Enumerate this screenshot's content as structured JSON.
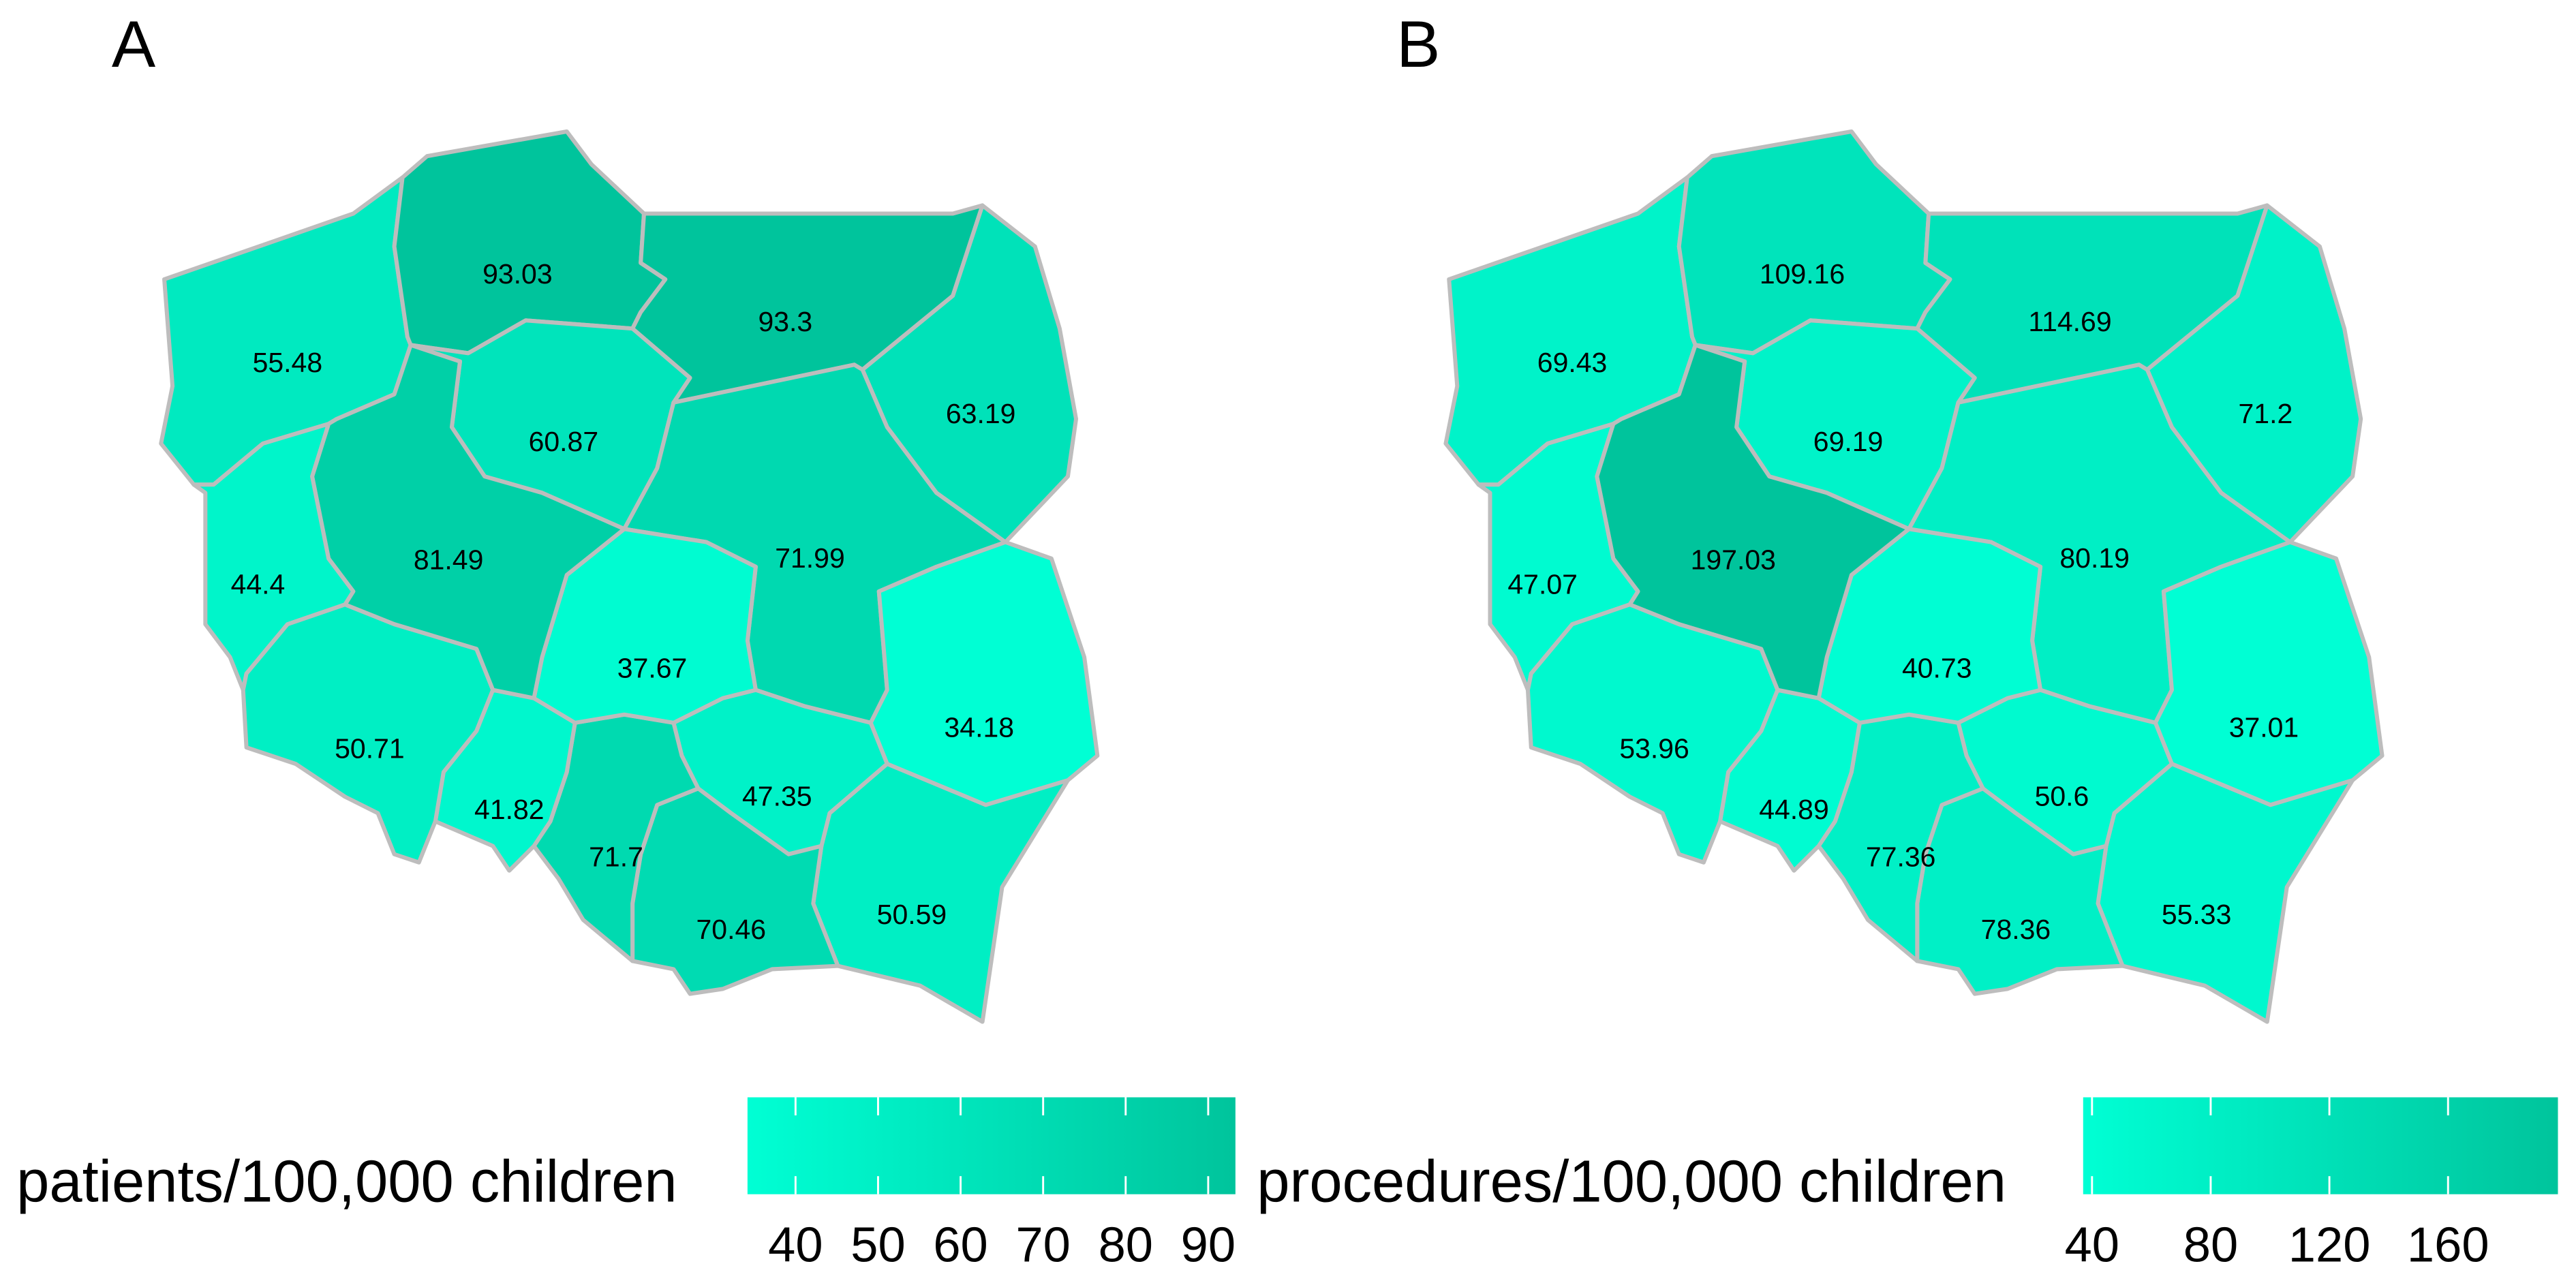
{
  "maps": [
    {
      "label": "A",
      "legend_title": "patients/100,000 children",
      "values": [
        55.48,
        93.03,
        93.3,
        63.19,
        60.87,
        71.99,
        34.18,
        50.59,
        47.35,
        70.46,
        71.7,
        41.82,
        37.67,
        81.49,
        44.4,
        50.71
      ],
      "scale": {
        "lim": [
          34.18,
          93.3
        ],
        "ticks": [
          40,
          50,
          60,
          70,
          80,
          90
        ],
        "low_color": "#00ffd4",
        "high_color": "#00c49c"
      }
    },
    {
      "label": "B",
      "legend_title": "procedures/100,000 children",
      "values": [
        69.43,
        109.16,
        114.69,
        71.2,
        69.19,
        80.19,
        37.01,
        55.33,
        50.6,
        78.36,
        77.36,
        44.89,
        40.73,
        197.03,
        47.07,
        53.96
      ],
      "scale": {
        "lim": [
          37.01,
          197.03
        ],
        "ticks": [
          40,
          80,
          120,
          160
        ],
        "low_color": "#00ffd4",
        "high_color": "#00c49c"
      }
    }
  ]
}
